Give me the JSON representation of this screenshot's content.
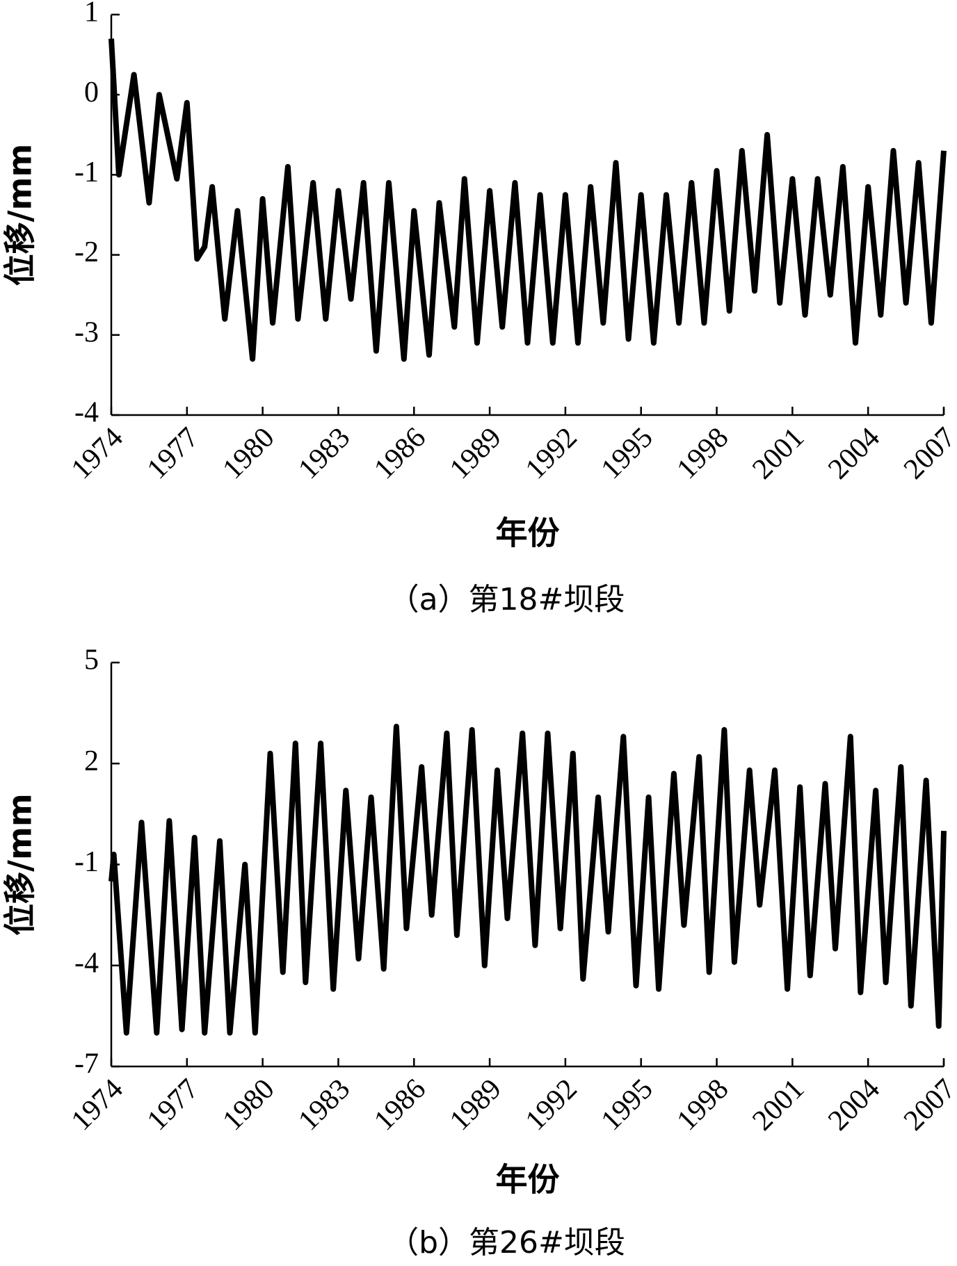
{
  "chart_data": [
    {
      "type": "line",
      "y_label": "位移/mm",
      "x_label": "年份",
      "caption": "（a）第18#坝段",
      "color": "#000000",
      "x": [
        1974.0,
        1974.3,
        1974.9,
        1975.5,
        1975.9,
        1976.6,
        1977.0,
        1977.4,
        1977.7,
        1978.0,
        1978.5,
        1979.0,
        1979.6,
        1980.0,
        1980.4,
        1981.0,
        1981.4,
        1982.0,
        1982.5,
        1983.0,
        1983.5,
        1984.0,
        1984.5,
        1985.0,
        1985.6,
        1986.0,
        1986.6,
        1987.0,
        1987.6,
        1988.0,
        1988.5,
        1989.0,
        1989.5,
        1990.0,
        1990.5,
        1991.0,
        1991.5,
        1992.0,
        1992.5,
        1993.0,
        1993.5,
        1994.0,
        1994.5,
        1995.0,
        1995.5,
        1996.0,
        1996.5,
        1997.0,
        1997.5,
        1998.0,
        1998.5,
        1999.0,
        1999.5,
        2000.0,
        2000.5,
        2001.0,
        2001.5,
        2002.0,
        2002.5,
        2003.0,
        2003.5,
        2004.0,
        2004.5,
        2005.0,
        2005.5,
        2006.0,
        2006.5,
        2007.0
      ],
      "values": [
        0.7,
        -1.0,
        0.25,
        -1.35,
        0.0,
        -1.05,
        -0.1,
        -2.05,
        -1.9,
        -1.15,
        -2.8,
        -1.45,
        -3.3,
        -1.3,
        -2.85,
        -0.9,
        -2.8,
        -1.1,
        -2.8,
        -1.2,
        -2.55,
        -1.1,
        -3.2,
        -1.1,
        -3.3,
        -1.45,
        -3.25,
        -1.35,
        -2.9,
        -1.05,
        -3.1,
        -1.2,
        -2.9,
        -1.1,
        -3.1,
        -1.25,
        -3.1,
        -1.25,
        -3.1,
        -1.15,
        -2.85,
        -0.85,
        -3.05,
        -1.25,
        -3.1,
        -1.25,
        -2.85,
        -1.1,
        -2.85,
        -0.95,
        -2.7,
        -0.7,
        -2.45,
        -0.5,
        -2.6,
        -1.05,
        -2.75,
        -1.05,
        -2.5,
        -0.9,
        -3.1,
        -1.15,
        -2.75,
        -0.7,
        -2.6,
        -0.85,
        -2.85,
        -0.7
      ],
      "xlim": [
        1974,
        2007
      ],
      "xticks": [
        1974,
        1977,
        1980,
        1983,
        1986,
        1989,
        1992,
        1995,
        1998,
        2001,
        2004,
        2007
      ],
      "ylim": [
        -4,
        1
      ],
      "yticks": [
        1,
        0,
        -1,
        -2,
        -3,
        -4
      ],
      "grid": false
    },
    {
      "type": "line",
      "y_label": "位移/mm",
      "x_label": "年份",
      "caption": "（b）第26#坝段",
      "color": "#000000",
      "x": [
        1974.0,
        1974.1,
        1974.6,
        1975.2,
        1975.8,
        1976.3,
        1976.8,
        1977.3,
        1977.7,
        1978.3,
        1978.7,
        1979.3,
        1979.7,
        1980.3,
        1980.8,
        1981.3,
        1981.7,
        1982.3,
        1982.8,
        1983.3,
        1983.8,
        1984.3,
        1984.8,
        1985.3,
        1985.7,
        1986.3,
        1986.7,
        1987.3,
        1987.7,
        1988.3,
        1988.8,
        1989.3,
        1989.7,
        1990.3,
        1990.8,
        1991.3,
        1991.8,
        1992.3,
        1992.7,
        1993.3,
        1993.7,
        1994.3,
        1994.8,
        1995.3,
        1995.7,
        1996.3,
        1996.7,
        1997.3,
        1997.7,
        1998.3,
        1998.7,
        1999.3,
        1999.7,
        2000.3,
        2000.8,
        2001.3,
        2001.7,
        2002.3,
        2002.7,
        2003.3,
        2003.7,
        2004.3,
        2004.7,
        2005.3,
        2005.7,
        2006.3,
        2006.8,
        2007.0
      ],
      "values": [
        -1.5,
        -0.7,
        -6.0,
        0.25,
        -6.0,
        0.3,
        -5.9,
        -0.2,
        -6.0,
        -0.3,
        -6.0,
        -1.0,
        -6.0,
        2.3,
        -4.2,
        2.6,
        -4.5,
        2.6,
        -4.7,
        1.2,
        -3.8,
        1.0,
        -4.1,
        3.1,
        -2.9,
        1.9,
        -2.5,
        2.9,
        -3.1,
        3.0,
        -4.0,
        1.8,
        -2.6,
        2.9,
        -3.4,
        2.9,
        -2.9,
        2.3,
        -4.4,
        1.0,
        -3.0,
        2.8,
        -4.6,
        1.0,
        -4.7,
        1.7,
        -2.8,
        2.2,
        -4.2,
        3.0,
        -3.9,
        1.8,
        -2.2,
        1.8,
        -4.7,
        1.3,
        -4.3,
        1.4,
        -3.5,
        2.8,
        -4.8,
        1.2,
        -4.5,
        1.9,
        -5.2,
        1.5,
        -5.8,
        0.0
      ],
      "xlim": [
        1974,
        2007
      ],
      "xticks": [
        1974,
        1977,
        1980,
        1983,
        1986,
        1989,
        1992,
        1995,
        1998,
        2001,
        2004,
        2007
      ],
      "ylim": [
        -7,
        5
      ],
      "yticks": [
        5,
        2,
        -1,
        -4,
        -7
      ],
      "grid": false
    }
  ]
}
